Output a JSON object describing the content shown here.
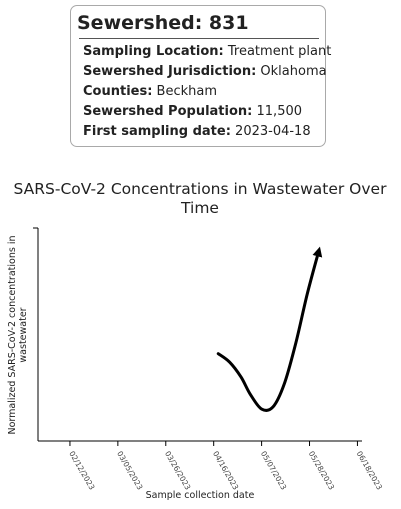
{
  "info_card": {
    "title": "Sewershed: 831",
    "rows": [
      {
        "key": "Sampling Location:",
        "value": "Treatment plant"
      },
      {
        "key": "Sewershed Jurisdiction:",
        "value": "Oklahoma"
      },
      {
        "key": "Counties:",
        "value": "Beckham"
      },
      {
        "key": "Sewershed Population:",
        "value": "11,500"
      },
      {
        "key": "First sampling date:",
        "value": "2023-04-18"
      }
    ]
  },
  "chart_data": {
    "type": "line",
    "title": "SARS-CoV-2 Concentrations in Wastewater Over Time",
    "title_lines": [
      "SARS-CoV-2 Concentrations in Wastewater Over",
      "Time"
    ],
    "xlabel": "Sample collection date",
    "ylabel": "Normalized SARS-CoV-2 concentrations in wastewater",
    "ylabel_lines": [
      "Normalized SARS-CoV-2 concentrations in",
      "wastewater"
    ],
    "x_ticks": [
      "02/12/2023",
      "03/05/2023",
      "03/26/2023",
      "04/16/2023",
      "05/07/2023",
      "05/28/2023",
      "06/18/2023"
    ],
    "xlim": [
      "2023-01-29",
      "2023-06-20"
    ],
    "ylim": [
      0,
      1
    ],
    "y_ticks_labeled": false,
    "grid": false,
    "trend_arrow": true,
    "line_color": "#000000",
    "x": [
      "2023-04-18",
      "2023-04-23",
      "2023-04-28",
      "2023-05-02",
      "2023-05-07",
      "2023-05-12",
      "2023-05-17",
      "2023-05-22",
      "2023-05-27",
      "2023-06-01"
    ],
    "y": [
      0.41,
      0.37,
      0.3,
      0.22,
      0.15,
      0.16,
      0.27,
      0.46,
      0.69,
      0.89
    ]
  }
}
